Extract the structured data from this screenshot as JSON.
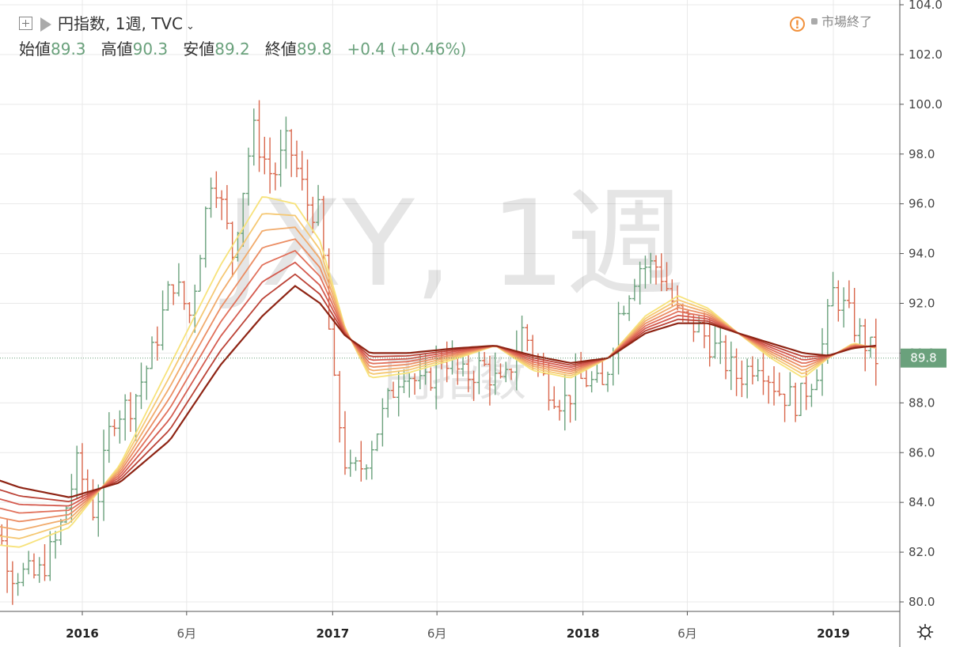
{
  "header": {
    "symbol": "円指数, 1週, TVC",
    "ohlc": [
      {
        "label": "始値",
        "value": "89.3"
      },
      {
        "label": "高値",
        "value": "90.3"
      },
      {
        "label": "安値",
        "value": "89.2"
      },
      {
        "label": "終値",
        "value": "89.8"
      }
    ],
    "change": "+0.4 (+0.46%)"
  },
  "market_status": "市場終了",
  "watermark": {
    "main": "JXY, 1週",
    "sub": "円指数"
  },
  "colors": {
    "up": "#6aa17c",
    "down": "#d9674c",
    "ribbon": [
      "#f7e27a",
      "#f5c873",
      "#f1ab6c",
      "#eb8d63",
      "#e1705a",
      "#d45a4e",
      "#bb4236",
      "#8e2414"
    ],
    "last_price_tag": "#6aa17c"
  },
  "chart_data": {
    "type": "bar",
    "style": "ohlc",
    "title": "円指数, 1週, TVC",
    "y_axis": {
      "min": 80.0,
      "max": 104.0,
      "ticks": [
        "80.0",
        "82.0",
        "84.0",
        "86.0",
        "88.0",
        "90.0",
        "92.0",
        "94.0",
        "96.0",
        "98.0",
        "100.0",
        "102.0",
        "104.0"
      ],
      "position": "right"
    },
    "x_axis": {
      "ticks": [
        {
          "label": "2016",
          "date": "2016-01",
          "bold": true
        },
        {
          "label": "6月",
          "date": "2016-06",
          "bold": false
        },
        {
          "label": "2017",
          "date": "2017-01",
          "bold": true
        },
        {
          "label": "6月",
          "date": "2017-06",
          "bold": false
        },
        {
          "label": "2018",
          "date": "2018-01",
          "bold": true
        },
        {
          "label": "6月",
          "date": "2018-06",
          "bold": false
        },
        {
          "label": "2019",
          "date": "2019-01",
          "bold": true
        }
      ]
    },
    "grid": true,
    "last_price": "89.8",
    "price_path": [
      [
        2015.55,
        83.5
      ],
      [
        2015.65,
        83.2
      ],
      [
        2015.72,
        81.2
      ],
      [
        2015.82,
        81.0
      ],
      [
        2015.9,
        82.5
      ],
      [
        2015.98,
        85.5
      ],
      [
        2016.05,
        83.5
      ],
      [
        2016.12,
        87.5
      ],
      [
        2016.2,
        88.0
      ],
      [
        2016.28,
        90.0
      ],
      [
        2016.36,
        93.0
      ],
      [
        2016.43,
        91.5
      ],
      [
        2016.52,
        97.5
      ],
      [
        2016.6,
        94.0
      ],
      [
        2016.68,
        99.0
      ],
      [
        2016.76,
        97.0
      ],
      [
        2016.82,
        98.5
      ],
      [
        2016.9,
        96.0
      ],
      [
        2016.95,
        95.5
      ],
      [
        2017.0,
        89.0
      ],
      [
        2017.06,
        85.0
      ],
      [
        2017.12,
        85.5
      ],
      [
        2017.2,
        87.5
      ],
      [
        2017.28,
        89.5
      ],
      [
        2017.36,
        88.5
      ],
      [
        2017.44,
        90.0
      ],
      [
        2017.52,
        89.0
      ],
      [
        2017.6,
        89.5
      ],
      [
        2017.68,
        88.5
      ],
      [
        2017.76,
        91.0
      ],
      [
        2017.84,
        89.0
      ],
      [
        2017.92,
        88.0
      ],
      [
        2018.0,
        89.0
      ],
      [
        2018.08,
        88.5
      ],
      [
        2018.14,
        91.5
      ],
      [
        2018.22,
        93.5
      ],
      [
        2018.3,
        93.5
      ],
      [
        2018.38,
        91.5
      ],
      [
        2018.46,
        91.0
      ],
      [
        2018.54,
        90.0
      ],
      [
        2018.62,
        89.0
      ],
      [
        2018.7,
        89.8
      ],
      [
        2018.78,
        88.5
      ],
      [
        2018.86,
        88.0
      ],
      [
        2018.94,
        89.5
      ],
      [
        2019.0,
        92.5
      ],
      [
        2019.06,
        91.5
      ],
      [
        2019.12,
        90.5
      ],
      [
        2019.17,
        89.8
      ]
    ],
    "ribbon_tops": [
      [
        2015.55,
        82.4
      ],
      [
        2015.75,
        82.2
      ],
      [
        2015.95,
        83.0
      ],
      [
        2016.15,
        85.5
      ],
      [
        2016.35,
        89.5
      ],
      [
        2016.55,
        93.5
      ],
      [
        2016.72,
        96.3
      ],
      [
        2016.85,
        96.0
      ],
      [
        2016.95,
        94.5
      ],
      [
        2017.05,
        91.0
      ],
      [
        2017.15,
        89.0
      ],
      [
        2017.3,
        89.2
      ],
      [
        2017.5,
        89.8
      ],
      [
        2017.65,
        90.3
      ],
      [
        2017.8,
        89.3
      ],
      [
        2017.95,
        89.0
      ],
      [
        2018.1,
        89.8
      ],
      [
        2018.25,
        91.5
      ],
      [
        2018.38,
        92.3
      ],
      [
        2018.5,
        91.8
      ],
      [
        2018.62,
        90.8
      ],
      [
        2018.75,
        89.8
      ],
      [
        2018.88,
        89.0
      ],
      [
        2018.98,
        89.8
      ],
      [
        2019.08,
        90.4
      ],
      [
        2019.17,
        90.2
      ]
    ],
    "ribbon_bottoms": [
      [
        2015.55,
        85.3
      ],
      [
        2015.75,
        84.6
      ],
      [
        2015.95,
        84.2
      ],
      [
        2016.15,
        84.8
      ],
      [
        2016.35,
        86.5
      ],
      [
        2016.55,
        89.5
      ],
      [
        2016.72,
        91.5
      ],
      [
        2016.85,
        92.7
      ],
      [
        2016.95,
        92.0
      ],
      [
        2017.05,
        90.7
      ],
      [
        2017.15,
        90.0
      ],
      [
        2017.3,
        90.0
      ],
      [
        2017.5,
        90.2
      ],
      [
        2017.65,
        90.3
      ],
      [
        2017.8,
        89.9
      ],
      [
        2017.95,
        89.6
      ],
      [
        2018.1,
        89.8
      ],
      [
        2018.25,
        90.8
      ],
      [
        2018.38,
        91.2
      ],
      [
        2018.5,
        91.2
      ],
      [
        2018.62,
        90.8
      ],
      [
        2018.75,
        90.4
      ],
      [
        2018.88,
        90.0
      ],
      [
        2018.98,
        89.9
      ],
      [
        2019.08,
        90.2
      ],
      [
        2019.17,
        90.3
      ]
    ],
    "bar_count": 170
  }
}
